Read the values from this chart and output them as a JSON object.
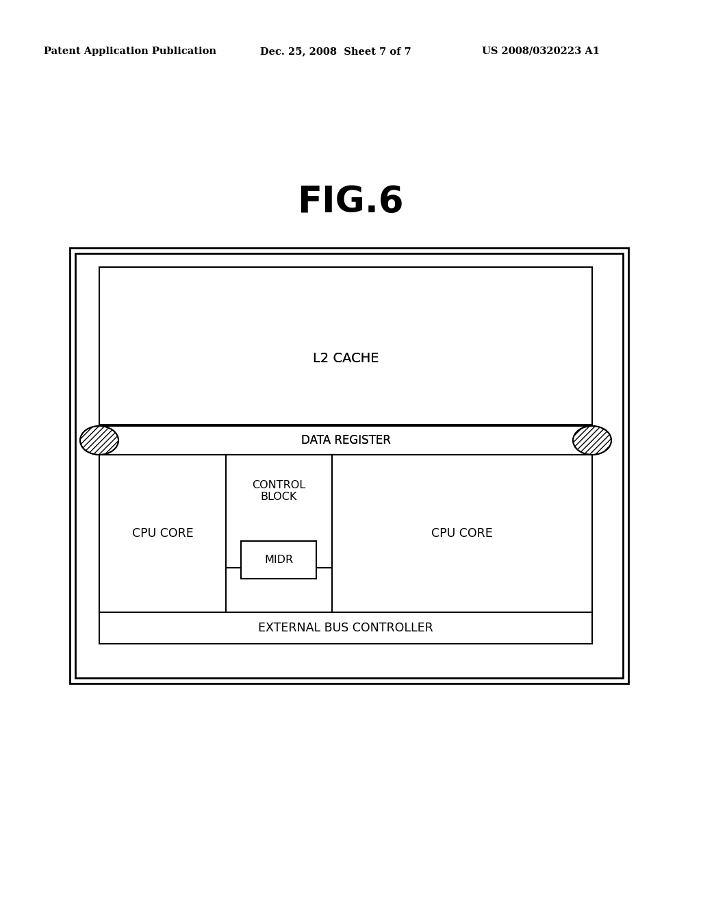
{
  "background_color": "#ffffff",
  "header_left": "Patent Application Publication",
  "header_mid": "Dec. 25, 2008  Sheet 7 of 7",
  "header_right": "US 2008/0320223 A1",
  "fig_title": "FIG.6",
  "line_color": "#000000",
  "text_color": "#000000",
  "header_fontsize": 10.5,
  "fig_title_fontsize": 38,
  "label_fontsize": 12.5,
  "small_label_fontsize": 11
}
